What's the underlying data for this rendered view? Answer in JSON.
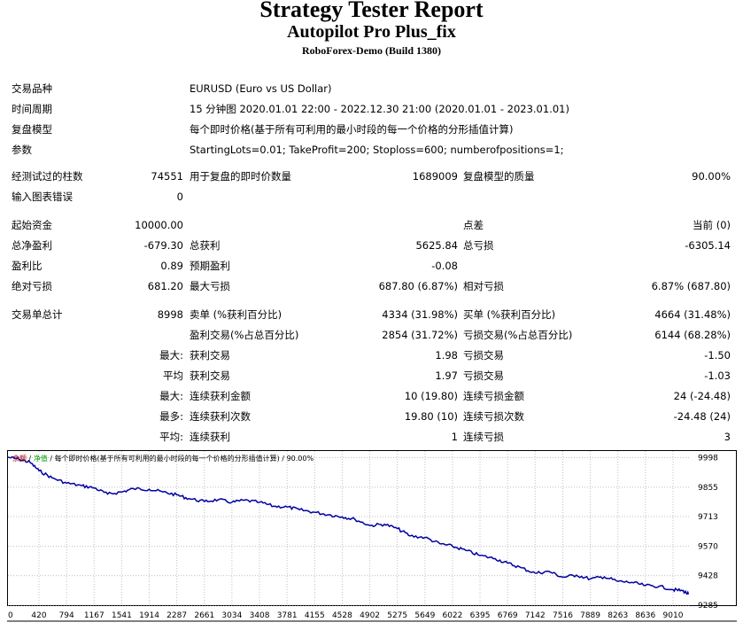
{
  "header": {
    "title": "Strategy Tester Report",
    "expert": "Autopilot Pro Plus_fix",
    "server": "RoboForex-Demo (Build 1380)"
  },
  "info": {
    "symbol_label": "交易品种",
    "symbol_value": "EURUSD (Euro vs US Dollar)",
    "period_label": "时间周期",
    "period_value": "15 分钟图 2020.01.01 22:00 - 2022.12.30 21:00 (2020.01.01 - 2023.01.01)",
    "model_label": "复盘模型",
    "model_value": "每个即时价格(基于所有可利用的最小时段的每一个价格的分形插值计算)",
    "params_label": "参数",
    "params_value": "StartingLots=0.01; TakeProfit=200; Stoploss=600; numberofpositions=1;"
  },
  "stats": {
    "bars_label": "经测试过的柱数",
    "bars_value": "74551",
    "ticks_label": "用于复盘的即时价数量",
    "ticks_value": "1689009",
    "quality_label": "复盘模型的质量",
    "quality_value": "90.00%",
    "errors_label": "输入图表错误",
    "errors_value": "0",
    "deposit_label": "起始资金",
    "deposit_value": "10000.00",
    "spread_label": "点差",
    "spread_value": "当前 (0)",
    "net_label": "总净盈利",
    "net_value": "-679.30",
    "gross_profit_label": "总获利",
    "gross_profit_value": "5625.84",
    "gross_loss_label": "总亏损",
    "gross_loss_value": "-6305.14",
    "pf_label": "盈利比",
    "pf_value": "0.89",
    "expected_label": "预期盈利",
    "expected_value": "-0.08",
    "abs_dd_label": "绝对亏损",
    "abs_dd_value": "681.20",
    "max_dd_label": "最大亏损",
    "max_dd_value": "687.80 (6.87%)",
    "rel_dd_label": "相对亏损",
    "rel_dd_value": "6.87% (687.80)",
    "total_trades_label": "交易单总计",
    "total_trades_value": "8998",
    "short_label": "卖单 (%获利百分比)",
    "short_value": "4334 (31.98%)",
    "long_label": "买单 (%获利百分比)",
    "long_value": "4664 (31.48%)",
    "profit_trades_label": "盈利交易(%占总百分比)",
    "profit_trades_value": "2854 (31.72%)",
    "loss_trades_label": "亏损交易(%占总百分比)",
    "loss_trades_value": "6144 (68.28%)",
    "largest_prefix": "最大:",
    "largest_profit_label": "获利交易",
    "largest_profit_value": "1.98",
    "largest_loss_label": "亏损交易",
    "largest_loss_value": "-1.50",
    "average_prefix": "平均",
    "average_profit_label": "获利交易",
    "average_profit_value": "1.97",
    "average_loss_label": "亏损交易",
    "average_loss_value": "-1.03",
    "max_consec_prefix": "最大:",
    "max_consec_wins_label": "连续获利金额",
    "max_consec_wins_value": "10 (19.80)",
    "max_consec_losses_label": "连续亏损金额",
    "max_consec_losses_value": "24 (-24.48)",
    "most_prefix": "最多:",
    "most_consec_profit_label": "连续获利次数",
    "most_consec_profit_value": "19.80 (10)",
    "most_consec_loss_label": "连续亏损次数",
    "most_consec_loss_value": "-24.48 (24)",
    "avg_consec_prefix": "平均:",
    "avg_consec_wins_label": "连续获利",
    "avg_consec_wins_value": "1",
    "avg_consec_losses_label": "连续亏损",
    "avg_consec_losses_value": "3"
  },
  "graph_legend": {
    "balance": "余额",
    "sep1": " / ",
    "equity": "净值",
    "rest": " / 每个即时价格(基于所有可利用的最小时段的每一个价格的分形插值计算) / 90.00%"
  },
  "colors": {
    "balance": "#0000a0",
    "equity": "#00a000",
    "legend_balance": "#a00000"
  },
  "chart_data": {
    "type": "line",
    "title": "",
    "xlabel": "",
    "ylabel": "",
    "x_ticks": [
      "0",
      "420",
      "794",
      "1167",
      "1541",
      "1914",
      "2287",
      "2661",
      "3034",
      "3408",
      "3781",
      "4155",
      "4528",
      "4902",
      "5275",
      "5649",
      "6022",
      "6395",
      "6769",
      "7142",
      "7516",
      "7889",
      "8263",
      "8636",
      "9010"
    ],
    "y_ticks": [
      "9998",
      "9855",
      "9713",
      "9570",
      "9428",
      "9285"
    ],
    "xlim": [
      0,
      9250
    ],
    "ylim": [
      9285,
      10030
    ],
    "grid": true,
    "series": [
      {
        "name": "余额",
        "x": [
          0,
          150,
          300,
          420,
          600,
          794,
          1000,
          1167,
          1350,
          1541,
          1700,
          1914,
          2100,
          2287,
          2450,
          2661,
          2850,
          3034,
          3200,
          3408,
          3600,
          3781,
          3950,
          4155,
          4350,
          4528,
          4700,
          4902,
          5100,
          5275,
          5450,
          5649,
          5850,
          6022,
          6200,
          6395,
          6600,
          6769,
          6950,
          7142,
          7330,
          7516,
          7700,
          7889,
          8080,
          8263,
          8450,
          8636,
          8820,
          9010,
          9140,
          9220
        ],
        "y": [
          10000,
          9990,
          9975,
          9935,
          9900,
          9875,
          9862,
          9852,
          9822,
          9832,
          9848,
          9845,
          9832,
          9818,
          9800,
          9786,
          9795,
          9782,
          9792,
          9782,
          9763,
          9760,
          9746,
          9734,
          9722,
          9712,
          9700,
          9670,
          9676,
          9655,
          9620,
          9612,
          9582,
          9570,
          9550,
          9525,
          9510,
          9488,
          9466,
          9440,
          9448,
          9420,
          9430,
          9412,
          9422,
          9400,
          9395,
          9380,
          9376,
          9360,
          9355,
          9338
        ]
      }
    ]
  }
}
